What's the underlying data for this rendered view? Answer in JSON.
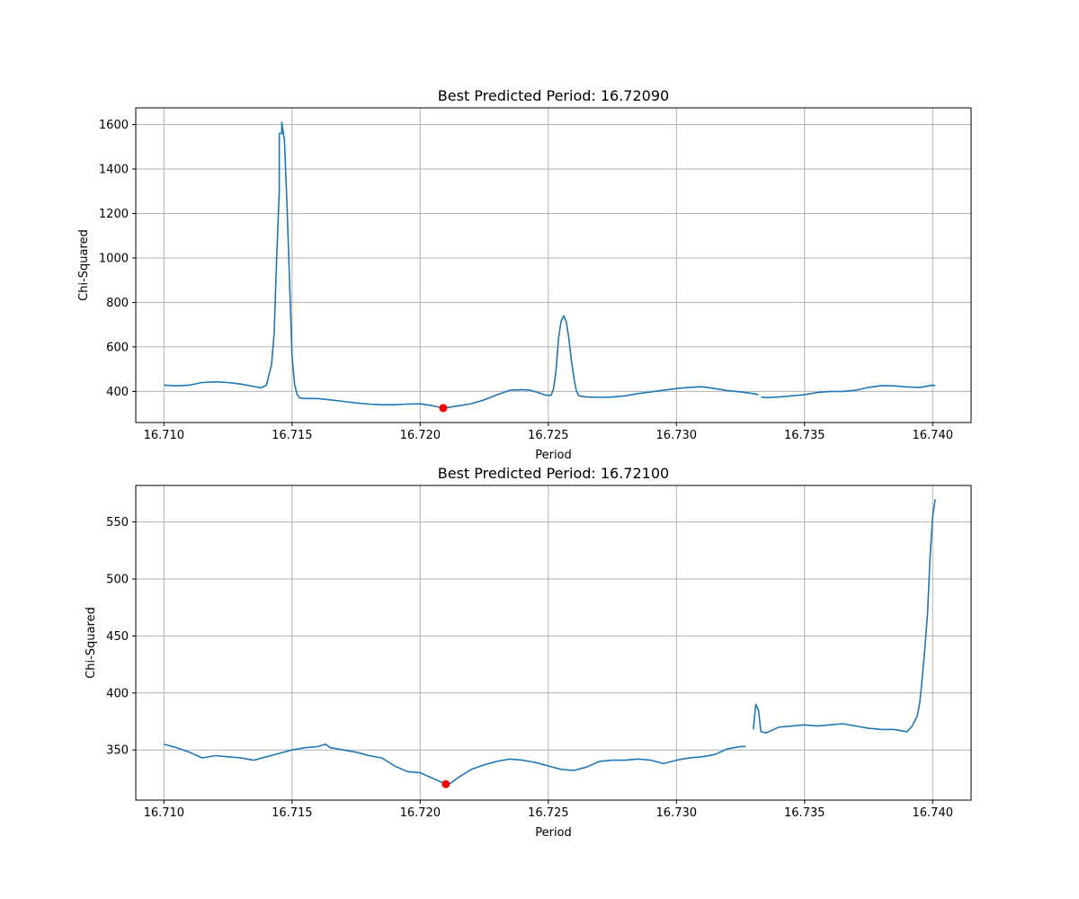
{
  "chart_data": [
    {
      "type": "line",
      "title": "Best Predicted Period: 16.72090",
      "xlabel": "Period",
      "ylabel": "Chi-Squared",
      "xlim": [
        16.7089,
        16.7415
      ],
      "ylim": [
        260,
        1675
      ],
      "xticks": [
        16.71,
        16.715,
        16.72,
        16.725,
        16.73,
        16.735,
        16.74
      ],
      "xtick_labels": [
        "16.710",
        "16.715",
        "16.720",
        "16.725",
        "16.730",
        "16.735",
        "16.740"
      ],
      "yticks": [
        400,
        600,
        800,
        1000,
        1200,
        1400,
        1600
      ],
      "ytick_labels": [
        "400",
        "600",
        "800",
        "1000",
        "1200",
        "1400",
        "1600"
      ],
      "grid": true,
      "color": "#1f77b4",
      "marker_color": "#ff0000",
      "best": {
        "x": 16.7209,
        "y": 325
      },
      "segments": [
        [
          [
            16.71,
            428
          ],
          [
            16.7105,
            425
          ],
          [
            16.711,
            428
          ],
          [
            16.7115,
            440
          ],
          [
            16.712,
            443
          ],
          [
            16.7125,
            440
          ],
          [
            16.713,
            433
          ],
          [
            16.7135,
            422
          ],
          [
            16.7138,
            416
          ],
          [
            16.714,
            428
          ],
          [
            16.7142,
            520
          ],
          [
            16.7143,
            660
          ],
          [
            16.7144,
            1000
          ],
          [
            16.7145,
            1300
          ],
          [
            16.7145,
            1560
          ],
          [
            16.7146,
            1560
          ],
          [
            16.7146,
            1610
          ],
          [
            16.7147,
            1530
          ],
          [
            16.7148,
            1250
          ],
          [
            16.7149,
            900
          ],
          [
            16.715,
            560
          ],
          [
            16.7151,
            430
          ],
          [
            16.7152,
            385
          ],
          [
            16.7153,
            370
          ],
          [
            16.7155,
            368
          ],
          [
            16.716,
            368
          ],
          [
            16.7165,
            362
          ],
          [
            16.717,
            355
          ],
          [
            16.7175,
            348
          ],
          [
            16.718,
            343
          ],
          [
            16.7185,
            340
          ],
          [
            16.719,
            340
          ],
          [
            16.7195,
            343
          ],
          [
            16.72,
            344
          ],
          [
            16.7205,
            335
          ],
          [
            16.7209,
            325
          ],
          [
            16.7212,
            330
          ],
          [
            16.7215,
            335
          ],
          [
            16.722,
            345
          ],
          [
            16.7225,
            362
          ],
          [
            16.723,
            385
          ],
          [
            16.7235,
            405
          ],
          [
            16.724,
            408
          ],
          [
            16.7243,
            405
          ],
          [
            16.7246,
            395
          ],
          [
            16.7249,
            383
          ],
          [
            16.7251,
            382
          ],
          [
            16.7252,
            410
          ],
          [
            16.7253,
            490
          ],
          [
            16.7254,
            640
          ],
          [
            16.7255,
            715
          ],
          [
            16.7256,
            740
          ],
          [
            16.7257,
            715
          ],
          [
            16.7258,
            640
          ],
          [
            16.7259,
            540
          ],
          [
            16.726,
            460
          ],
          [
            16.7261,
            400
          ],
          [
            16.7262,
            380
          ],
          [
            16.7265,
            375
          ],
          [
            16.727,
            373
          ],
          [
            16.7275,
            375
          ],
          [
            16.728,
            380
          ],
          [
            16.7285,
            390
          ],
          [
            16.729,
            398
          ],
          [
            16.7295,
            405
          ],
          [
            16.73,
            413
          ],
          [
            16.7305,
            418
          ],
          [
            16.731,
            421
          ],
          [
            16.7315,
            413
          ],
          [
            16.732,
            403
          ],
          [
            16.7325,
            398
          ],
          [
            16.733,
            390
          ],
          [
            16.7332,
            385
          ]
        ],
        [
          [
            16.7333,
            375
          ],
          [
            16.7335,
            372
          ],
          [
            16.734,
            375
          ],
          [
            16.7345,
            380
          ],
          [
            16.735,
            385
          ],
          [
            16.7355,
            395
          ],
          [
            16.736,
            400
          ],
          [
            16.7365,
            400
          ],
          [
            16.737,
            405
          ],
          [
            16.7375,
            418
          ],
          [
            16.738,
            426
          ],
          [
            16.7385,
            425
          ],
          [
            16.739,
            420
          ],
          [
            16.7395,
            418
          ],
          [
            16.74,
            428
          ],
          [
            16.7401,
            425
          ]
        ]
      ]
    },
    {
      "type": "line",
      "title": "Best Predicted Period: 16.72100",
      "xlabel": "Period",
      "ylabel": "Chi-Squared",
      "xlim": [
        16.7089,
        16.7415
      ],
      "ylim": [
        306,
        582
      ],
      "xticks": [
        16.71,
        16.715,
        16.72,
        16.725,
        16.73,
        16.735,
        16.74
      ],
      "xtick_labels": [
        "16.710",
        "16.715",
        "16.720",
        "16.725",
        "16.730",
        "16.735",
        "16.740"
      ],
      "yticks": [
        350,
        400,
        450,
        500,
        550
      ],
      "ytick_labels": [
        "350",
        "400",
        "450",
        "500",
        "550"
      ],
      "grid": true,
      "color": "#1f77b4",
      "marker_color": "#ff0000",
      "best": {
        "x": 16.721,
        "y": 320
      },
      "segments": [
        [
          [
            16.71,
            355
          ],
          [
            16.7105,
            352
          ],
          [
            16.711,
            348
          ],
          [
            16.7115,
            343
          ],
          [
            16.712,
            345
          ],
          [
            16.7125,
            344
          ],
          [
            16.713,
            343
          ],
          [
            16.7135,
            341
          ],
          [
            16.714,
            344
          ],
          [
            16.7145,
            347
          ],
          [
            16.715,
            350
          ],
          [
            16.7155,
            352
          ],
          [
            16.716,
            353
          ],
          [
            16.7163,
            355
          ],
          [
            16.7165,
            352
          ],
          [
            16.717,
            350
          ],
          [
            16.7175,
            348
          ],
          [
            16.718,
            345
          ],
          [
            16.7185,
            343
          ],
          [
            16.719,
            336
          ],
          [
            16.7195,
            331
          ],
          [
            16.72,
            330
          ],
          [
            16.7205,
            325
          ],
          [
            16.7208,
            322
          ],
          [
            16.721,
            320
          ],
          [
            16.7212,
            321
          ],
          [
            16.7215,
            326
          ],
          [
            16.722,
            333
          ],
          [
            16.7225,
            337
          ],
          [
            16.723,
            340
          ],
          [
            16.7235,
            342
          ],
          [
            16.724,
            341
          ],
          [
            16.7245,
            339
          ],
          [
            16.725,
            336
          ],
          [
            16.7255,
            333
          ],
          [
            16.726,
            332
          ],
          [
            16.7265,
            335
          ],
          [
            16.727,
            340
          ],
          [
            16.7275,
            341
          ],
          [
            16.728,
            341
          ],
          [
            16.7285,
            342
          ],
          [
            16.729,
            341
          ],
          [
            16.7295,
            338
          ],
          [
            16.73,
            341
          ],
          [
            16.7305,
            343
          ],
          [
            16.731,
            344
          ],
          [
            16.7315,
            346
          ],
          [
            16.732,
            351
          ],
          [
            16.7325,
            353
          ],
          [
            16.7327,
            353
          ]
        ],
        [
          [
            16.733,
            368
          ],
          [
            16.7331,
            390
          ],
          [
            16.7332,
            385
          ],
          [
            16.7333,
            366
          ],
          [
            16.7335,
            365
          ],
          [
            16.734,
            370
          ],
          [
            16.7345,
            371
          ],
          [
            16.735,
            372
          ],
          [
            16.7355,
            371
          ],
          [
            16.736,
            372
          ],
          [
            16.7365,
            373
          ],
          [
            16.737,
            371
          ],
          [
            16.7375,
            369
          ],
          [
            16.738,
            368
          ],
          [
            16.7385,
            368
          ],
          [
            16.739,
            366
          ],
          [
            16.7392,
            371
          ],
          [
            16.7394,
            380
          ],
          [
            16.7395,
            392
          ],
          [
            16.7396,
            415
          ],
          [
            16.7397,
            440
          ],
          [
            16.7398,
            470
          ],
          [
            16.7399,
            520
          ],
          [
            16.74,
            555
          ],
          [
            16.7401,
            570
          ]
        ]
      ]
    }
  ]
}
